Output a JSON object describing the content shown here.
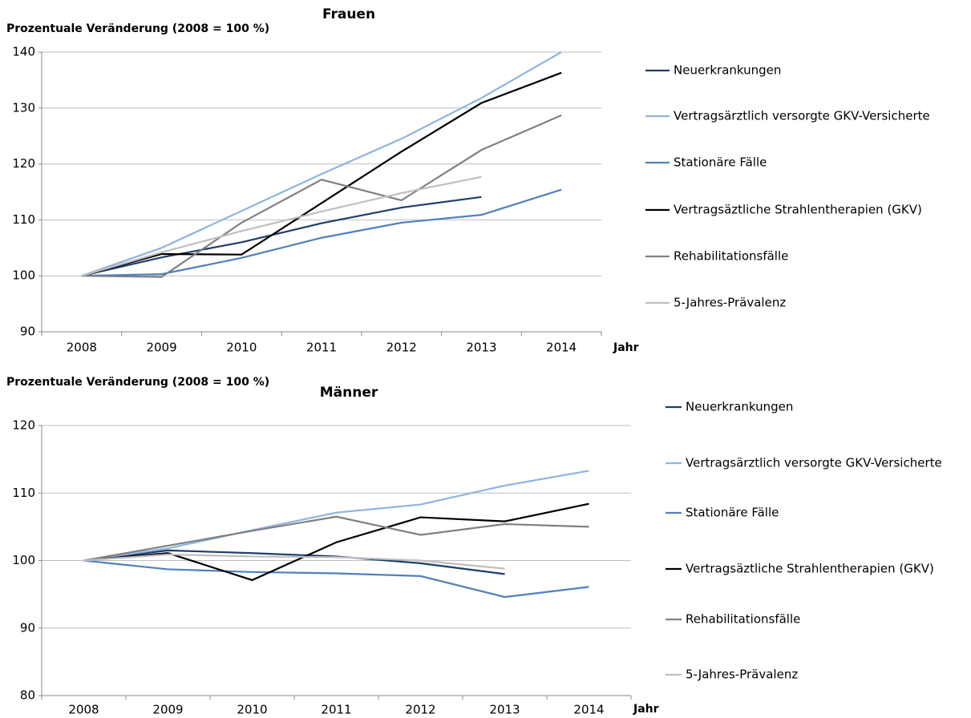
{
  "chart_data": [
    {
      "type": "line",
      "title": "Frauen",
      "ylabel": "Prozentuale Veränderung (2008 = 100 %)",
      "xlabel": "Jahr",
      "categories": [
        "2008",
        "2009",
        "2010",
        "2011",
        "2012",
        "2013",
        "2014"
      ],
      "ylim": [
        90,
        140
      ],
      "yticks": [
        90,
        100,
        110,
        120,
        130,
        140
      ],
      "grid": true,
      "series": [
        {
          "name": "Neuerkrankungen",
          "color": "#1f3d6b",
          "values": [
            100,
            103.3,
            106,
            109.4,
            112.2,
            114.1,
            null
          ]
        },
        {
          "name": "Vertragsärztlich versorgte GKV-Versicherte",
          "color": "#8eb4e3",
          "values": [
            100,
            105,
            111.6,
            118.2,
            124.5,
            131.8,
            140
          ]
        },
        {
          "name": "Stationäre Fälle",
          "color": "#4f81bd",
          "values": [
            100,
            100.3,
            103.2,
            106.8,
            109.5,
            110.9,
            115.4
          ]
        },
        {
          "name": "Vertragsäztliche Strahlentherapien (GKV)",
          "color": "#000000",
          "values": [
            100,
            103.9,
            103.8,
            113,
            122.2,
            130.9,
            136.3
          ]
        },
        {
          "name": "Rehabilitationsfälle",
          "color": "#808080",
          "values": [
            100,
            99.8,
            109.5,
            117.2,
            113.5,
            122.5,
            128.7
          ]
        },
        {
          "name": "5-Jahres-Prävalenz",
          "color": "#bfbfbf",
          "values": [
            100,
            104.2,
            108,
            111.5,
            114.8,
            117.7,
            null
          ]
        }
      ]
    },
    {
      "type": "line",
      "title": "Männer",
      "ylabel": "Prozentuale Veränderung (2008 = 100 %)",
      "xlabel": "Jahr",
      "categories": [
        "2008",
        "2009",
        "2010",
        "2011",
        "2012",
        "2013",
        "2014"
      ],
      "ylim": [
        80,
        120
      ],
      "yticks": [
        80,
        90,
        100,
        110,
        120
      ],
      "grid": true,
      "series": [
        {
          "name": "Neuerkrankungen",
          "color": "#1f3d6b",
          "values": [
            100,
            101.5,
            101.1,
            100.6,
            99.6,
            98,
            null
          ]
        },
        {
          "name": "Vertragsärztlich versorgte GKV-Versicherte",
          "color": "#8eb4e3",
          "values": [
            100,
            101.8,
            104.5,
            107.1,
            108.3,
            111.1,
            113.3
          ]
        },
        {
          "name": "Stationäre Fälle",
          "color": "#4f81bd",
          "values": [
            100,
            98.7,
            98.3,
            98.1,
            97.7,
            94.6,
            96.1
          ]
        },
        {
          "name": "Vertragsäztliche Strahlentherapien (GKV)",
          "color": "#000000",
          "values": [
            100,
            101.1,
            97.1,
            102.7,
            106.4,
            105.8,
            108.4
          ]
        },
        {
          "name": "Rehabilitationsfälle",
          "color": "#808080",
          "values": [
            100,
            102.2,
            104.4,
            106.5,
            103.8,
            105.4,
            105
          ]
        },
        {
          "name": "5-Jahres-Prävalenz",
          "color": "#bfbfbf",
          "values": [
            100,
            100.9,
            100.6,
            100.5,
            100,
            98.8,
            null
          ]
        }
      ]
    }
  ]
}
